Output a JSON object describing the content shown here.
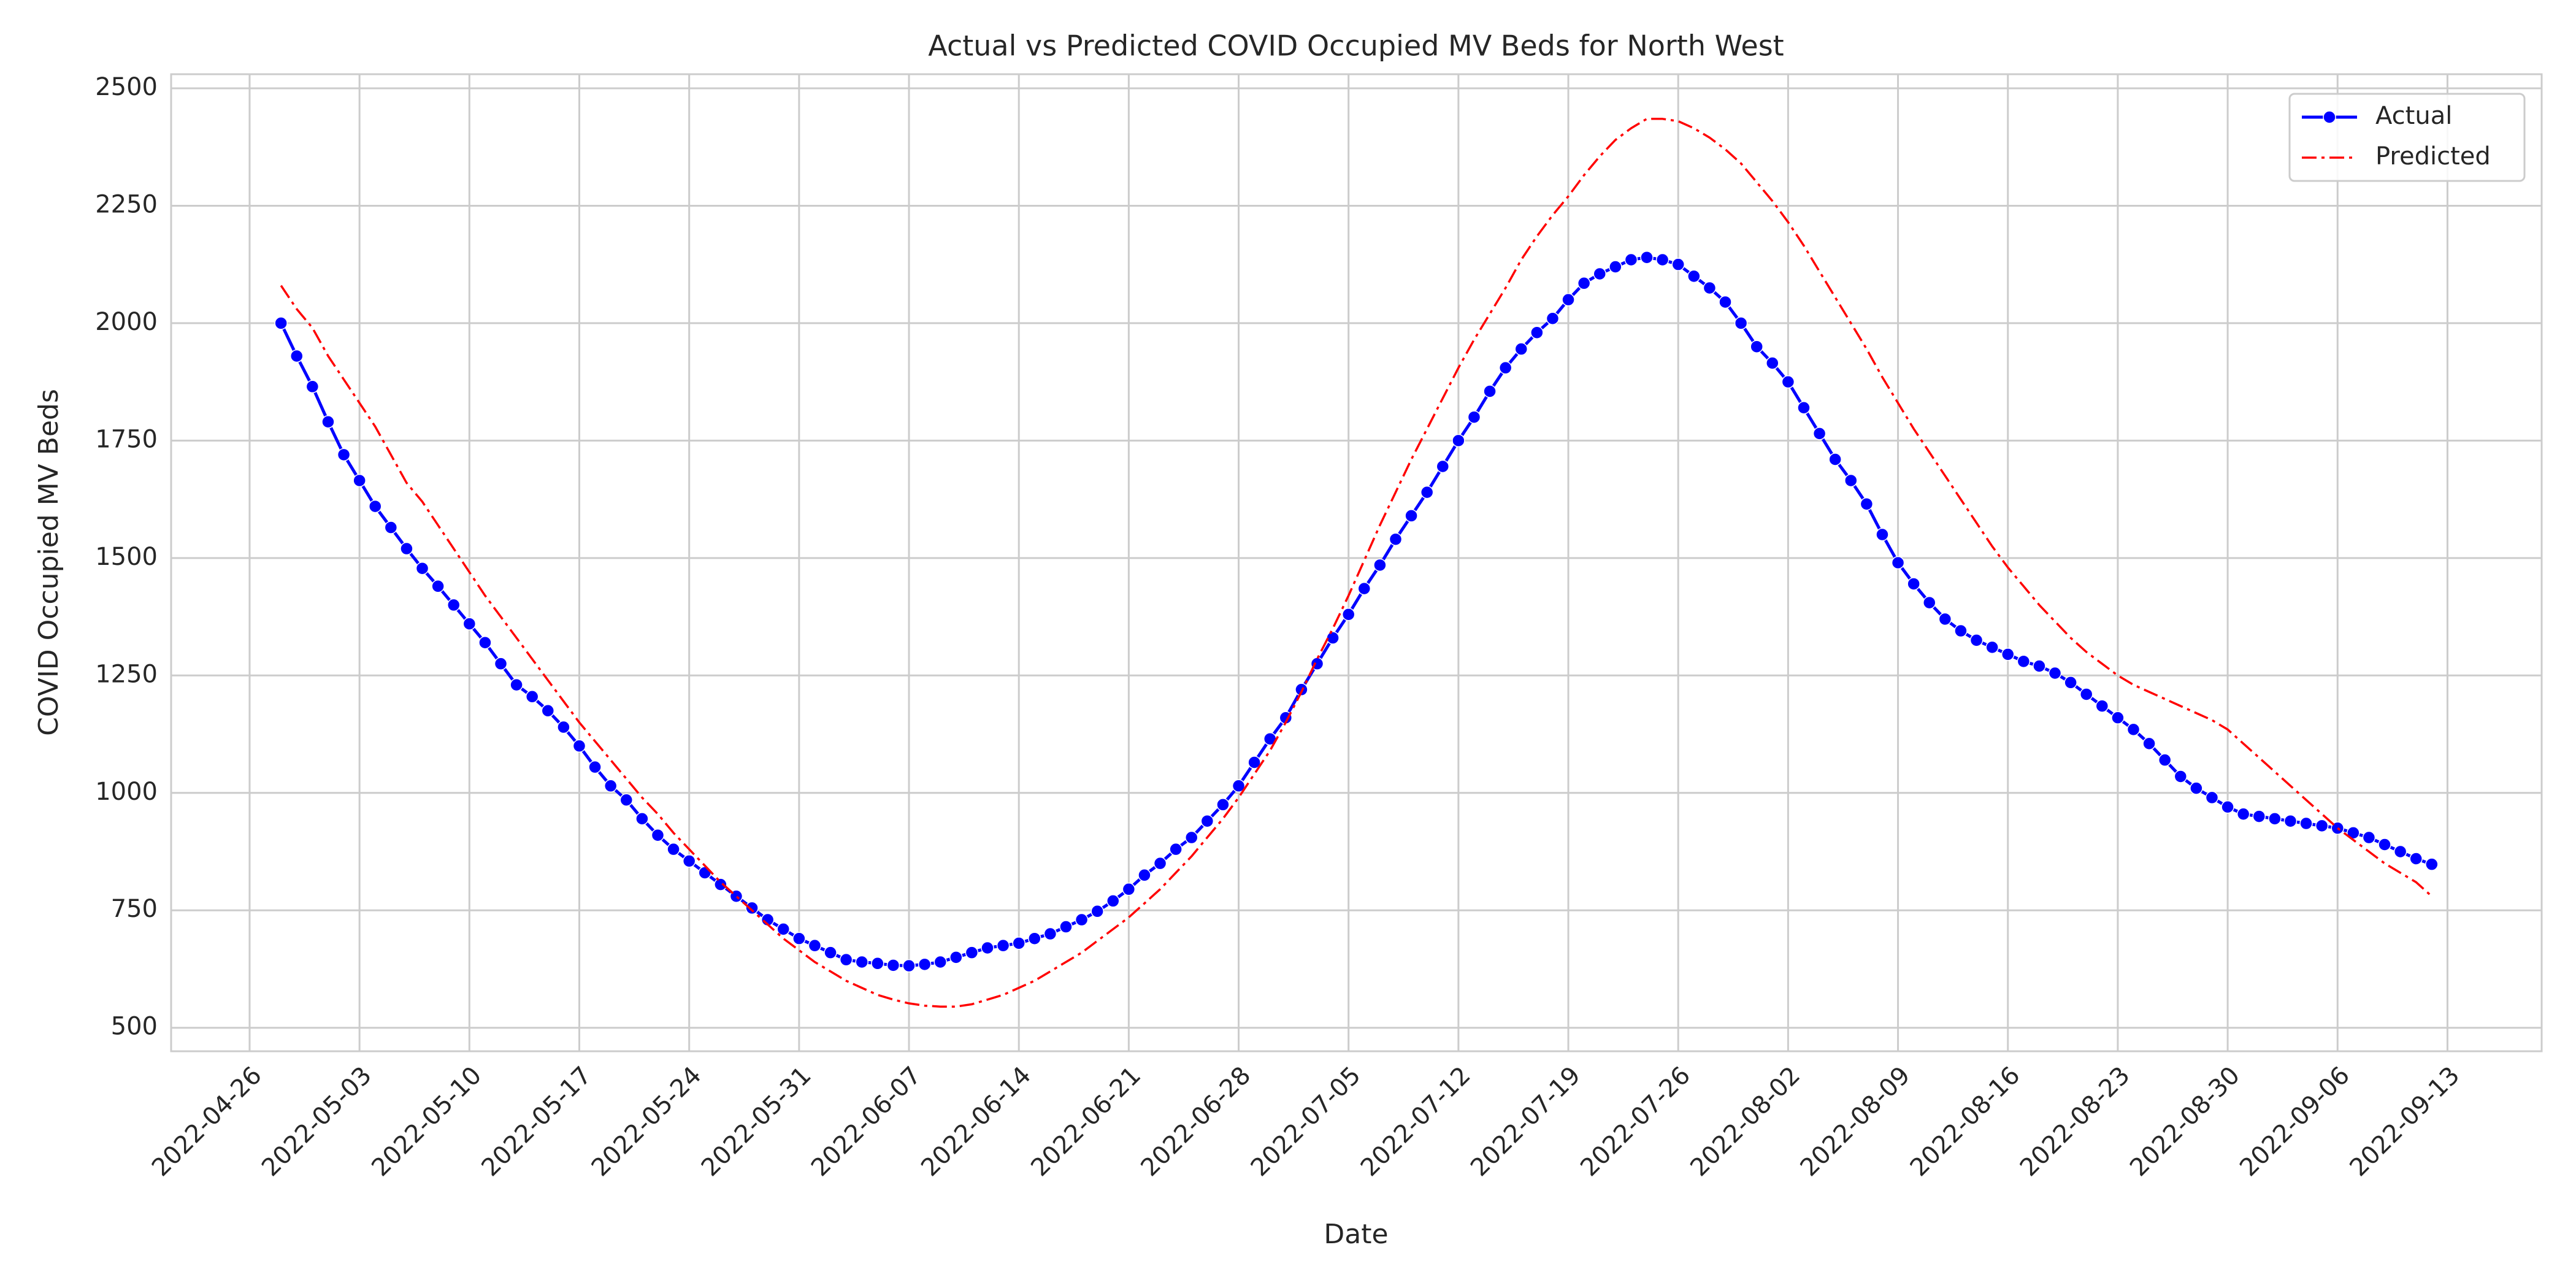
{
  "chart_data": {
    "type": "line",
    "title": "Actual vs Predicted COVID Occupied MV Beds for North West",
    "x_label": "Date",
    "y_label": "COVID Occupied MV Beds",
    "x": [
      "2022-04-28",
      "2022-04-29",
      "2022-04-30",
      "2022-05-01",
      "2022-05-02",
      "2022-05-03",
      "2022-05-04",
      "2022-05-05",
      "2022-05-06",
      "2022-05-07",
      "2022-05-08",
      "2022-05-09",
      "2022-05-10",
      "2022-05-11",
      "2022-05-12",
      "2022-05-13",
      "2022-05-14",
      "2022-05-15",
      "2022-05-16",
      "2022-05-17",
      "2022-05-18",
      "2022-05-19",
      "2022-05-20",
      "2022-05-21",
      "2022-05-22",
      "2022-05-23",
      "2022-05-24",
      "2022-05-25",
      "2022-05-26",
      "2022-05-27",
      "2022-05-28",
      "2022-05-29",
      "2022-05-30",
      "2022-05-31",
      "2022-06-01",
      "2022-06-02",
      "2022-06-03",
      "2022-06-04",
      "2022-06-05",
      "2022-06-06",
      "2022-06-07",
      "2022-06-08",
      "2022-06-09",
      "2022-06-10",
      "2022-06-11",
      "2022-06-12",
      "2022-06-13",
      "2022-06-14",
      "2022-06-15",
      "2022-06-16",
      "2022-06-17",
      "2022-06-18",
      "2022-06-19",
      "2022-06-20",
      "2022-06-21",
      "2022-06-22",
      "2022-06-23",
      "2022-06-24",
      "2022-06-25",
      "2022-06-26",
      "2022-06-27",
      "2022-06-28",
      "2022-06-29",
      "2022-06-30",
      "2022-07-01",
      "2022-07-02",
      "2022-07-03",
      "2022-07-04",
      "2022-07-05",
      "2022-07-06",
      "2022-07-07",
      "2022-07-08",
      "2022-07-09",
      "2022-07-10",
      "2022-07-11",
      "2022-07-12",
      "2022-07-13",
      "2022-07-14",
      "2022-07-15",
      "2022-07-16",
      "2022-07-17",
      "2022-07-18",
      "2022-07-19",
      "2022-07-20",
      "2022-07-21",
      "2022-07-22",
      "2022-07-23",
      "2022-07-24",
      "2022-07-25",
      "2022-07-26",
      "2022-07-27",
      "2022-07-28",
      "2022-07-29",
      "2022-07-30",
      "2022-07-31",
      "2022-08-01",
      "2022-08-02",
      "2022-08-03",
      "2022-08-04",
      "2022-08-05",
      "2022-08-06",
      "2022-08-07",
      "2022-08-08",
      "2022-08-09",
      "2022-08-10",
      "2022-08-11",
      "2022-08-12",
      "2022-08-13",
      "2022-08-14",
      "2022-08-15",
      "2022-08-16",
      "2022-08-17",
      "2022-08-18",
      "2022-08-19",
      "2022-08-20",
      "2022-08-21",
      "2022-08-22",
      "2022-08-23",
      "2022-08-24",
      "2022-08-25",
      "2022-08-26",
      "2022-08-27",
      "2022-08-28",
      "2022-08-29",
      "2022-08-30",
      "2022-08-31",
      "2022-09-01",
      "2022-09-02",
      "2022-09-03",
      "2022-09-04",
      "2022-09-05",
      "2022-09-06",
      "2022-09-07",
      "2022-09-08",
      "2022-09-09",
      "2022-09-10",
      "2022-09-11",
      "2022-09-12"
    ],
    "series": [
      {
        "name": "Actual",
        "color": "#0000ff",
        "marker": "o",
        "linestyle": "solid",
        "values": [
          2000,
          1930,
          1865,
          1790,
          1720,
          1665,
          1610,
          1565,
          1520,
          1478,
          1440,
          1400,
          1360,
          1320,
          1275,
          1230,
          1205,
          1175,
          1140,
          1100,
          1055,
          1015,
          985,
          945,
          910,
          880,
          855,
          830,
          805,
          780,
          755,
          730,
          710,
          690,
          675,
          660,
          645,
          640,
          637,
          633,
          632,
          635,
          640,
          650,
          660,
          670,
          675,
          680,
          690,
          700,
          715,
          730,
          748,
          770,
          795,
          825,
          850,
          880,
          905,
          940,
          975,
          1015,
          1065,
          1115,
          1160,
          1220,
          1275,
          1330,
          1380,
          1435,
          1485,
          1540,
          1590,
          1640,
          1695,
          1750,
          1800,
          1855,
          1905,
          1945,
          1980,
          2010,
          2050,
          2085,
          2105,
          2120,
          2135,
          2140,
          2135,
          2125,
          2100,
          2075,
          2045,
          2000,
          1950,
          1915,
          1875,
          1820,
          1765,
          1710,
          1665,
          1615,
          1550,
          1490,
          1445,
          1405,
          1370,
          1345,
          1325,
          1310,
          1295,
          1280,
          1270,
          1255,
          1235,
          1210,
          1185,
          1160,
          1135,
          1105,
          1070,
          1035,
          1010,
          990,
          970,
          955,
          950,
          945,
          940,
          935,
          930,
          925,
          915,
          905,
          890,
          875,
          860,
          848
        ]
      },
      {
        "name": "Predicted",
        "color": "#ff0000",
        "linestyle": "dashdot",
        "values": [
          2080,
          2030,
          1990,
          1930,
          1880,
          1830,
          1780,
          1720,
          1660,
          1620,
          1570,
          1520,
          1470,
          1420,
          1375,
          1330,
          1285,
          1240,
          1195,
          1150,
          1110,
          1070,
          1030,
          990,
          955,
          915,
          880,
          845,
          810,
          780,
          750,
          720,
          690,
          665,
          640,
          620,
          600,
          585,
          570,
          560,
          552,
          547,
          545,
          545,
          550,
          560,
          570,
          585,
          600,
          620,
          640,
          660,
          685,
          710,
          735,
          765,
          795,
          830,
          865,
          905,
          945,
          990,
          1040,
          1090,
          1150,
          1215,
          1285,
          1350,
          1420,
          1495,
          1570,
          1640,
          1710,
          1775,
          1840,
          1905,
          1965,
          2020,
          2075,
          2135,
          2185,
          2230,
          2270,
          2315,
          2355,
          2390,
          2415,
          2435,
          2435,
          2430,
          2415,
          2395,
          2370,
          2340,
          2300,
          2260,
          2215,
          2165,
          2110,
          2055,
          2000,
          1945,
          1885,
          1830,
          1775,
          1725,
          1675,
          1625,
          1575,
          1525,
          1480,
          1440,
          1400,
          1365,
          1330,
          1300,
          1275,
          1250,
          1230,
          1215,
          1200,
          1185,
          1170,
          1155,
          1135,
          1105,
          1075,
          1045,
          1015,
          985,
          955,
          925,
          900,
          875,
          850,
          830,
          810,
          780
        ]
      }
    ],
    "xlim": [
      "2022-04-21",
      "2022-09-19"
    ],
    "xticks": [
      "2022-04-26",
      "2022-05-03",
      "2022-05-10",
      "2022-05-17",
      "2022-05-24",
      "2022-05-31",
      "2022-06-07",
      "2022-06-14",
      "2022-06-21",
      "2022-06-28",
      "2022-07-05",
      "2022-07-12",
      "2022-07-19",
      "2022-07-26",
      "2022-08-02",
      "2022-08-09",
      "2022-08-16",
      "2022-08-23",
      "2022-08-30",
      "2022-09-06",
      "2022-09-13"
    ],
    "ylim": [
      450,
      2530
    ],
    "yticks": [
      500,
      750,
      1000,
      1250,
      1500,
      1750,
      2000,
      2250,
      2500
    ],
    "grid": true,
    "legend": "upper right"
  }
}
